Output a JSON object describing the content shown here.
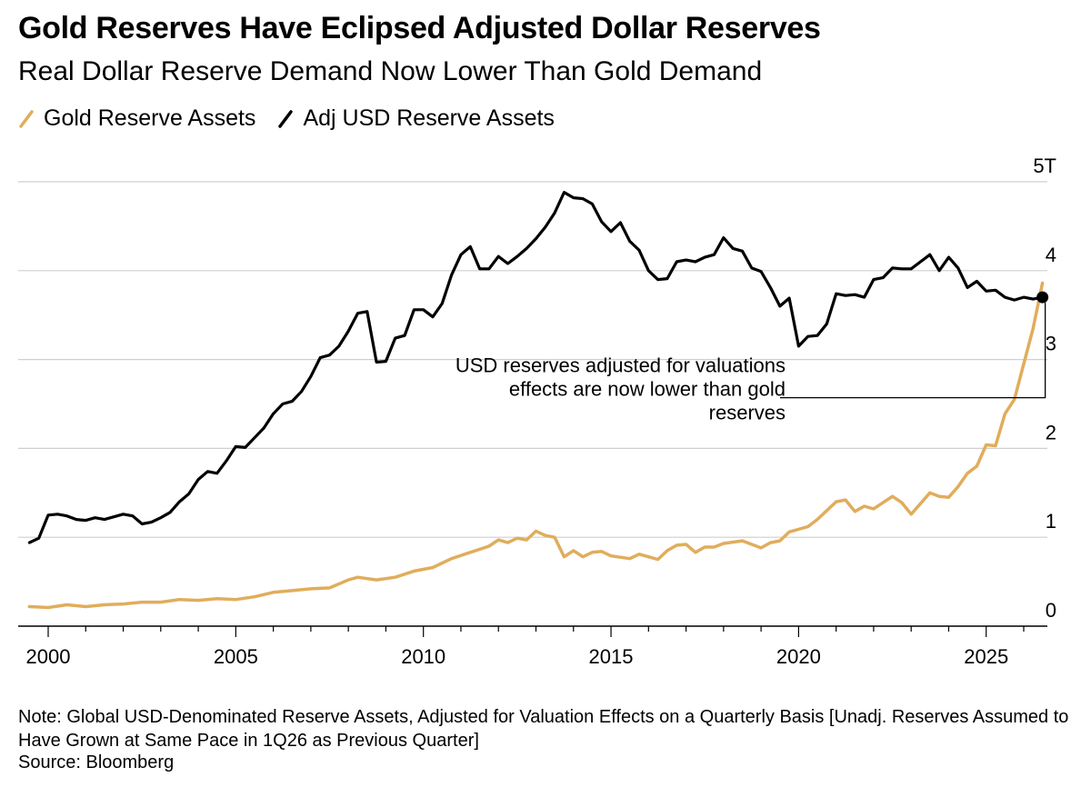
{
  "chart_data": {
    "type": "line",
    "title": "Gold Reserves Have Eclipsed Adjusted Dollar Reserves",
    "subtitle": "Real Dollar Reserve Demand Now Lower Than Gold Demand",
    "xlabel": "",
    "ylabel": "",
    "xlim": [
      1999.5,
      2026.5
    ],
    "ylim": [
      0,
      5
    ],
    "y_ticks": [
      0,
      1,
      2,
      3,
      4,
      5
    ],
    "y_tick_labels": [
      "0",
      "1",
      "2",
      "3",
      "4",
      "5T"
    ],
    "x_ticks": [
      2000,
      2005,
      2010,
      2015,
      2020,
      2025
    ],
    "x_tick_labels": [
      "2000",
      "2005",
      "2010",
      "2015",
      "2020",
      "2025"
    ],
    "grid": true,
    "legend_position": "top-left",
    "series": [
      {
        "name": "Gold Reserve Assets",
        "color": "#e0ad5c",
        "points": [
          [
            1999.5,
            0.22
          ],
          [
            2000.0,
            0.21
          ],
          [
            2000.5,
            0.24
          ],
          [
            2001.0,
            0.22
          ],
          [
            2001.5,
            0.24
          ],
          [
            2002.0,
            0.25
          ],
          [
            2002.5,
            0.27
          ],
          [
            2003.0,
            0.27
          ],
          [
            2003.5,
            0.3
          ],
          [
            2004.0,
            0.29
          ],
          [
            2004.5,
            0.31
          ],
          [
            2005.0,
            0.3
          ],
          [
            2005.5,
            0.33
          ],
          [
            2006.0,
            0.38
          ],
          [
            2006.5,
            0.4
          ],
          [
            2007.0,
            0.42
          ],
          [
            2007.5,
            0.43
          ],
          [
            2008.0,
            0.52
          ],
          [
            2008.25,
            0.55
          ],
          [
            2008.75,
            0.52
          ],
          [
            2009.25,
            0.55
          ],
          [
            2009.75,
            0.62
          ],
          [
            2010.25,
            0.66
          ],
          [
            2010.75,
            0.76
          ],
          [
            2011.25,
            0.83
          ],
          [
            2011.75,
            0.9
          ],
          [
            2012.0,
            0.97
          ],
          [
            2012.25,
            0.94
          ],
          [
            2012.5,
            0.99
          ],
          [
            2012.75,
            0.97
          ],
          [
            2013.0,
            1.07
          ],
          [
            2013.25,
            1.02
          ],
          [
            2013.5,
            1.0
          ],
          [
            2013.75,
            0.78
          ],
          [
            2014.0,
            0.85
          ],
          [
            2014.25,
            0.78
          ],
          [
            2014.5,
            0.83
          ],
          [
            2014.75,
            0.84
          ],
          [
            2015.0,
            0.79
          ],
          [
            2015.5,
            0.76
          ],
          [
            2015.75,
            0.81
          ],
          [
            2016.25,
            0.75
          ],
          [
            2016.5,
            0.85
          ],
          [
            2016.75,
            0.91
          ],
          [
            2017.0,
            0.92
          ],
          [
            2017.25,
            0.83
          ],
          [
            2017.5,
            0.89
          ],
          [
            2017.75,
            0.89
          ],
          [
            2018.0,
            0.93
          ],
          [
            2018.5,
            0.96
          ],
          [
            2019.0,
            0.88
          ],
          [
            2019.25,
            0.94
          ],
          [
            2019.5,
            0.96
          ],
          [
            2019.75,
            1.06
          ],
          [
            2020.25,
            1.12
          ],
          [
            2020.5,
            1.2
          ],
          [
            2020.75,
            1.3
          ],
          [
            2021.0,
            1.4
          ],
          [
            2021.25,
            1.42
          ],
          [
            2021.5,
            1.29
          ],
          [
            2021.75,
            1.35
          ],
          [
            2022.0,
            1.32
          ],
          [
            2022.5,
            1.46
          ],
          [
            2022.75,
            1.39
          ],
          [
            2023.0,
            1.26
          ],
          [
            2023.5,
            1.5
          ],
          [
            2023.75,
            1.46
          ],
          [
            2024.0,
            1.45
          ],
          [
            2024.25,
            1.57
          ],
          [
            2024.5,
            1.72
          ],
          [
            2024.75,
            1.8
          ],
          [
            2025.0,
            2.04
          ],
          [
            2025.25,
            2.03
          ],
          [
            2025.5,
            2.39
          ],
          [
            2025.75,
            2.55
          ],
          [
            2026.0,
            2.95
          ],
          [
            2026.25,
            3.35
          ],
          [
            2026.5,
            3.86
          ]
        ]
      },
      {
        "name": "Adj USD Reserve Assets",
        "color": "#000000",
        "points": [
          [
            1999.5,
            0.94
          ],
          [
            1999.75,
            0.99
          ],
          [
            2000.0,
            1.25
          ],
          [
            2000.25,
            1.26
          ],
          [
            2000.5,
            1.24
          ],
          [
            2000.75,
            1.2
          ],
          [
            2001.0,
            1.19
          ],
          [
            2001.25,
            1.22
          ],
          [
            2001.5,
            1.2
          ],
          [
            2001.75,
            1.23
          ],
          [
            2002.0,
            1.26
          ],
          [
            2002.25,
            1.24
          ],
          [
            2002.5,
            1.15
          ],
          [
            2002.75,
            1.17
          ],
          [
            2003.0,
            1.22
          ],
          [
            2003.25,
            1.28
          ],
          [
            2003.5,
            1.4
          ],
          [
            2003.75,
            1.49
          ],
          [
            2004.0,
            1.65
          ],
          [
            2004.25,
            1.74
          ],
          [
            2004.5,
            1.72
          ],
          [
            2004.75,
            1.86
          ],
          [
            2005.0,
            2.02
          ],
          [
            2005.25,
            2.01
          ],
          [
            2005.5,
            2.12
          ],
          [
            2005.75,
            2.23
          ],
          [
            2006.0,
            2.39
          ],
          [
            2006.25,
            2.5
          ],
          [
            2006.5,
            2.53
          ],
          [
            2006.75,
            2.64
          ],
          [
            2007.0,
            2.81
          ],
          [
            2007.25,
            3.02
          ],
          [
            2007.5,
            3.05
          ],
          [
            2007.75,
            3.15
          ],
          [
            2008.0,
            3.32
          ],
          [
            2008.25,
            3.52
          ],
          [
            2008.5,
            3.54
          ],
          [
            2008.75,
            2.97
          ],
          [
            2009.0,
            2.98
          ],
          [
            2009.25,
            3.24
          ],
          [
            2009.5,
            3.27
          ],
          [
            2009.75,
            3.56
          ],
          [
            2010.0,
            3.56
          ],
          [
            2010.25,
            3.48
          ],
          [
            2010.5,
            3.63
          ],
          [
            2010.75,
            3.95
          ],
          [
            2011.0,
            4.18
          ],
          [
            2011.25,
            4.27
          ],
          [
            2011.5,
            4.02
          ],
          [
            2011.75,
            4.02
          ],
          [
            2012.0,
            4.16
          ],
          [
            2012.25,
            4.08
          ],
          [
            2012.5,
            4.16
          ],
          [
            2012.75,
            4.25
          ],
          [
            2013.0,
            4.36
          ],
          [
            2013.25,
            4.49
          ],
          [
            2013.5,
            4.65
          ],
          [
            2013.75,
            4.88
          ],
          [
            2014.0,
            4.82
          ],
          [
            2014.25,
            4.81
          ],
          [
            2014.5,
            4.75
          ],
          [
            2014.75,
            4.55
          ],
          [
            2015.0,
            4.44
          ],
          [
            2015.25,
            4.54
          ],
          [
            2015.5,
            4.33
          ],
          [
            2015.75,
            4.23
          ],
          [
            2016.0,
            4.0
          ],
          [
            2016.25,
            3.9
          ],
          [
            2016.5,
            3.91
          ],
          [
            2016.75,
            4.1
          ],
          [
            2017.0,
            4.12
          ],
          [
            2017.25,
            4.1
          ],
          [
            2017.5,
            4.15
          ],
          [
            2017.75,
            4.18
          ],
          [
            2018.0,
            4.37
          ],
          [
            2018.25,
            4.25
          ],
          [
            2018.5,
            4.22
          ],
          [
            2018.75,
            4.03
          ],
          [
            2019.0,
            3.99
          ],
          [
            2019.25,
            3.81
          ],
          [
            2019.5,
            3.6
          ],
          [
            2019.75,
            3.69
          ],
          [
            2020.0,
            3.15
          ],
          [
            2020.25,
            3.26
          ],
          [
            2020.5,
            3.27
          ],
          [
            2020.75,
            3.4
          ],
          [
            2021.0,
            3.74
          ],
          [
            2021.25,
            3.72
          ],
          [
            2021.5,
            3.73
          ],
          [
            2021.75,
            3.7
          ],
          [
            2022.0,
            3.9
          ],
          [
            2022.25,
            3.92
          ],
          [
            2022.5,
            4.03
          ],
          [
            2022.75,
            4.02
          ],
          [
            2023.0,
            4.02
          ],
          [
            2023.25,
            4.1
          ],
          [
            2023.5,
            4.18
          ],
          [
            2023.75,
            4.0
          ],
          [
            2024.0,
            4.15
          ],
          [
            2024.25,
            4.03
          ],
          [
            2024.5,
            3.81
          ],
          [
            2024.75,
            3.88
          ],
          [
            2025.0,
            3.77
          ],
          [
            2025.25,
            3.78
          ],
          [
            2025.5,
            3.7
          ],
          [
            2025.75,
            3.67
          ],
          [
            2026.0,
            3.7
          ],
          [
            2026.25,
            3.68
          ],
          [
            2026.5,
            3.7
          ]
        ]
      }
    ],
    "annotations": [
      {
        "text_lines": [
          "USD reserves adjusted for valuations",
          "effects are now lower than gold",
          "reserves"
        ],
        "bracket_x": 2026.5,
        "bracket_top": 3.7,
        "bracket_bottom": 2.57,
        "marker": [
          2026.5,
          3.7
        ]
      }
    ]
  },
  "legend": [
    {
      "label": "Gold Reserve Assets",
      "color": "#e0ad5c"
    },
    {
      "label": "Adj USD Reserve Assets",
      "color": "#000000"
    }
  ],
  "footer": {
    "note": "Note: Global USD-Denominated Reserve Assets, Adjusted for Valuation Effects on a Quarterly Basis [Unadj. Reserves Assumed to Have Grown at Same Pace in 1Q26 as Previous Quarter]",
    "source": "Source: Bloomberg"
  }
}
